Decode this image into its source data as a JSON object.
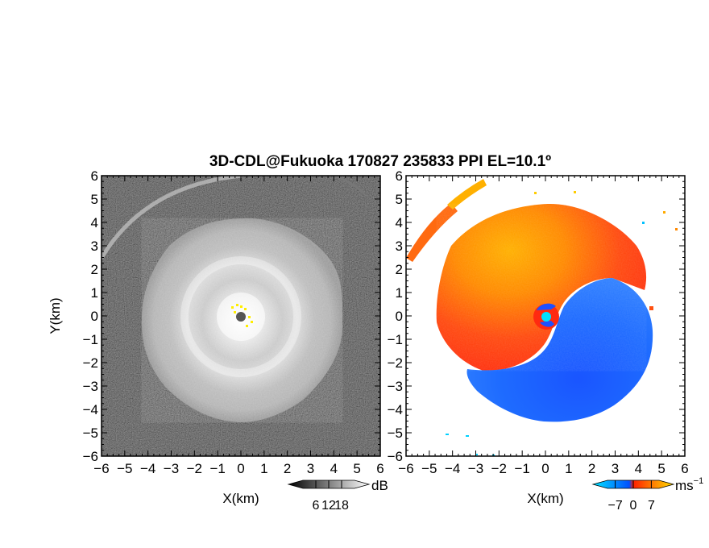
{
  "title": "3D-CDL@Fukuoka 170827 235833 PPI EL=10.1º",
  "chart_data": [
    {
      "type": "heatmap",
      "name": "reflectivity-panel",
      "xlabel": "X(km)",
      "ylabel": "Y(km)",
      "xlim": [
        -6,
        6
      ],
      "ylim": [
        -6,
        6
      ],
      "xticks": [
        "−6",
        "−5",
        "−4",
        "−3",
        "−2",
        "−1",
        "0",
        "1",
        "2",
        "3",
        "4",
        "5",
        "6"
      ],
      "yticks": [
        "6",
        "5",
        "4",
        "3",
        "2",
        "1",
        "0",
        "−1",
        "−2",
        "−3",
        "−4",
        "−5",
        "−6"
      ],
      "colorbar": {
        "label": "dB",
        "ticks": [
          "6",
          "12",
          "18"
        ],
        "tick_values": [
          6,
          12,
          18
        ],
        "range": [
          0,
          24
        ],
        "colors": [
          "#000000",
          "#ffffff"
        ]
      },
      "features": {
        "echo_radius_km": 4.2,
        "center_marker": [
          0,
          0
        ]
      }
    },
    {
      "type": "heatmap",
      "name": "doppler-velocity-panel",
      "xlabel": "X(km)",
      "xlim": [
        -6,
        6
      ],
      "ylim": [
        -6,
        6
      ],
      "xticks": [
        "−6",
        "−5",
        "−4",
        "−3",
        "−2",
        "−1",
        "0",
        "1",
        "2",
        "3",
        "4",
        "5",
        "6"
      ],
      "yticks": [
        "6",
        "5",
        "4",
        "3",
        "2",
        "1",
        "0",
        "−1",
        "−2",
        "−3",
        "−4",
        "−5",
        "−6"
      ],
      "colorbar": {
        "label": "ms",
        "label_exponent": "−1",
        "ticks": [
          "−7",
          "0",
          "7"
        ],
        "tick_values": [
          -7,
          0,
          7
        ],
        "range": [
          -10,
          10
        ],
        "colors": [
          "#00e5ff",
          "#0050ff",
          "#ff2000",
          "#ff8000",
          "#ffdd00"
        ]
      },
      "features": {
        "echo_radius_km": 4.5,
        "center_marker": [
          0,
          0
        ]
      }
    }
  ],
  "colors": {
    "positive_velocity": "#ff4a10",
    "negative_velocity": "#1e6bff",
    "center_marker_velocity": "#00e0ff",
    "center_marker_reflectivity": "#555555"
  }
}
